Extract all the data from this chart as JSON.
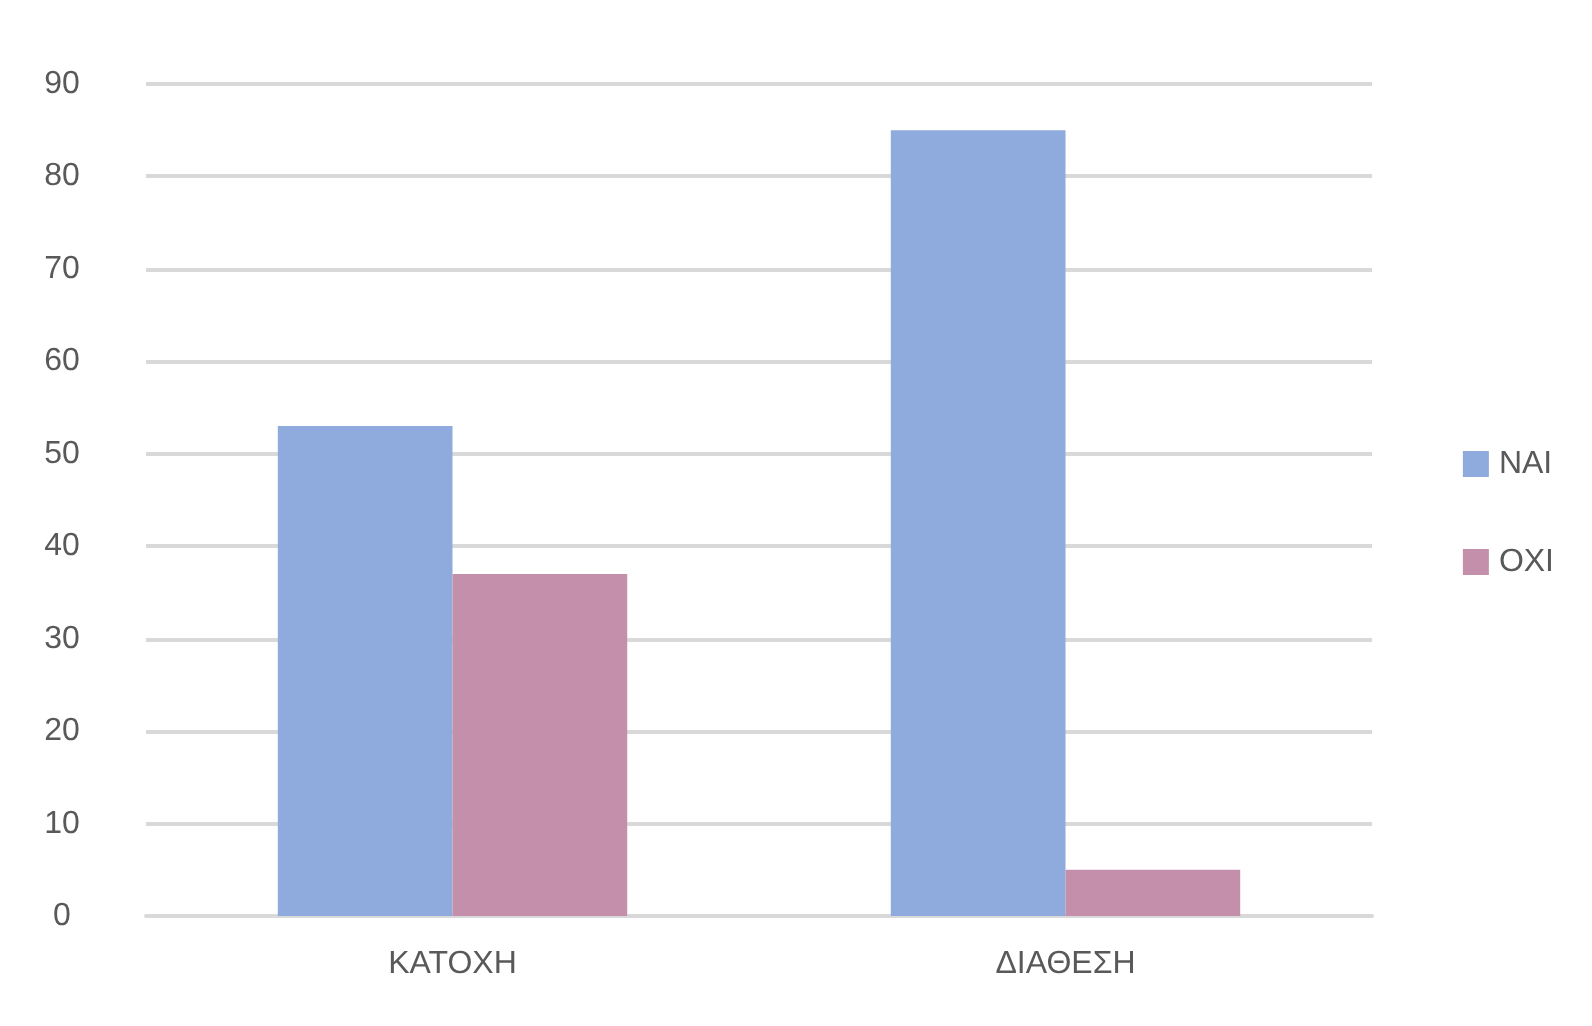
{
  "chart_data": {
    "type": "bar",
    "categories": [
      "ΚΑΤΟΧΗ",
      "ΔΙΑΘΕΣΗ"
    ],
    "series": [
      {
        "name": "ΝΑΙ",
        "color": "#8faadc",
        "values": [
          53,
          85
        ]
      },
      {
        "name": "ΟΧΙ",
        "color": "#c48faa",
        "values": [
          37,
          5
        ]
      }
    ],
    "ylim": [
      0,
      90
    ],
    "yticks": [
      0,
      10,
      20,
      30,
      40,
      50,
      60,
      70,
      80,
      90
    ],
    "grid": "y",
    "legend": "right"
  }
}
